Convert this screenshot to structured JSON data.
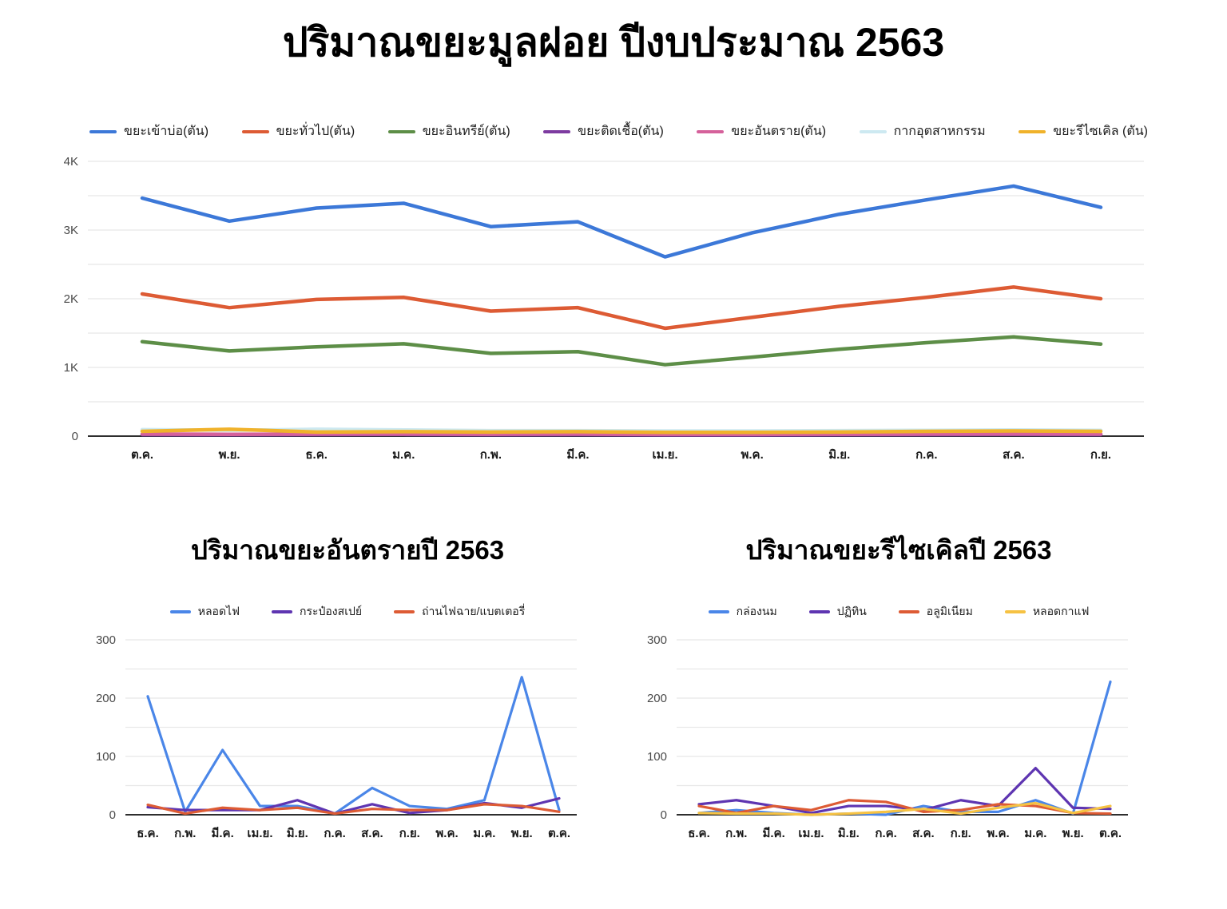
{
  "page_title": "ปริมาณขยะมูลฝอย ปีงบประมาณ 2563",
  "chart_data": [
    {
      "type": "line",
      "title": "ปริมาณขยะมูลฝอย ปีงบประมาณ 2563",
      "legend_position": "top",
      "grid": true,
      "ylim": [
        0,
        4000
      ],
      "minor_step": 500,
      "yticks": [
        {
          "v": 0,
          "label": "0"
        },
        {
          "v": 1000,
          "label": "1K"
        },
        {
          "v": 2000,
          "label": "2K"
        },
        {
          "v": 3000,
          "label": "3K"
        },
        {
          "v": 4000,
          "label": "4K"
        }
      ],
      "categories": [
        "ต.ค.",
        "พ.ย.",
        "ธ.ค.",
        "ม.ค.",
        "ก.พ.",
        "มี.ค.",
        "เม.ย.",
        "พ.ค.",
        "มิ.ย.",
        "ก.ค.",
        "ส.ค.",
        "ก.ย."
      ],
      "series": [
        {
          "name": "ขยะเข้าบ่อ(ตัน)",
          "color": "#3c78d8",
          "values": [
            3465,
            3130,
            3320,
            3390,
            3050,
            3120,
            2610,
            2960,
            3230,
            3440,
            3640,
            3330
          ]
        },
        {
          "name": "ขยะทั่วไป(ตัน)",
          "color": "#dd5b34",
          "values": [
            2070,
            1870,
            1990,
            2020,
            1820,
            1870,
            1570,
            1730,
            1890,
            2020,
            2170,
            2000
          ]
        },
        {
          "name": "ขยะอินทรีย์(ตัน)",
          "color": "#5d8e47",
          "values": [
            1375,
            1240,
            1300,
            1345,
            1205,
            1230,
            1040,
            1150,
            1265,
            1360,
            1445,
            1340
          ]
        },
        {
          "name": "ขยะติดเชื้อ(ตัน)",
          "color": "#7d3ba0",
          "values": [
            22,
            20,
            22,
            24,
            20,
            22,
            18,
            18,
            20,
            22,
            25,
            22
          ]
        },
        {
          "name": "ขยะอันตราย(ตัน)",
          "color": "#d5619b",
          "values": [
            30,
            26,
            30,
            30,
            28,
            30,
            25,
            25,
            28,
            30,
            32,
            30
          ]
        },
        {
          "name": "กากอุตสาหกรรม",
          "color": "#cde9f1",
          "values": [
            95,
            85,
            100,
            90,
            80,
            80,
            75,
            75,
            80,
            85,
            90,
            85
          ]
        },
        {
          "name": "ขยะรีไซเคิล (ตัน)",
          "color": "#f0b22b",
          "values": [
            70,
            100,
            60,
            65,
            60,
            65,
            55,
            55,
            60,
            70,
            75,
            70
          ]
        }
      ]
    },
    {
      "type": "line",
      "title": "ปริมาณขยะอันตรายปี 2563",
      "legend_position": "top",
      "grid": true,
      "ylim": [
        0,
        300
      ],
      "minor_step": 50,
      "yticks": [
        {
          "v": 0,
          "label": "0"
        },
        {
          "v": 100,
          "label": "100"
        },
        {
          "v": 200,
          "label": "200"
        },
        {
          "v": 300,
          "label": "300"
        }
      ],
      "categories": [
        "ธ.ค.",
        "ก.พ.",
        "มี.ค.",
        "เม.ย.",
        "มิ.ย.",
        "ก.ค.",
        "ส.ค.",
        "ก.ย.",
        "พ.ค.",
        "ม.ค.",
        "พ.ย.",
        "ต.ค."
      ],
      "series": [
        {
          "name": "หลอดไฟ",
          "color": "#4a86e8",
          "values": [
            203,
            5,
            111,
            15,
            15,
            2,
            46,
            15,
            10,
            25,
            236,
            8
          ]
        },
        {
          "name": "กระป๋องสเปย์",
          "color": "#5e35b1",
          "values": [
            13,
            8,
            8,
            8,
            25,
            2,
            18,
            3,
            8,
            20,
            12,
            28
          ]
        },
        {
          "name": "ถ่านไฟฉาย/แบตเตอรี่",
          "color": "#dd5b34",
          "values": [
            17,
            2,
            12,
            8,
            12,
            2,
            10,
            8,
            8,
            18,
            15,
            5
          ]
        }
      ]
    },
    {
      "type": "line",
      "title": "ปริมาณขยะรีไซเคิลปี 2563",
      "legend_position": "top",
      "grid": true,
      "ylim": [
        0,
        300
      ],
      "minor_step": 50,
      "yticks": [
        {
          "v": 0,
          "label": "0"
        },
        {
          "v": 100,
          "label": "100"
        },
        {
          "v": 200,
          "label": "200"
        },
        {
          "v": 300,
          "label": "300"
        }
      ],
      "categories": [
        "ธ.ค.",
        "ก.พ.",
        "มี.ค.",
        "เม.ย.",
        "มิ.ย.",
        "ก.ค.",
        "ส.ค.",
        "ก.ย.",
        "พ.ค.",
        "ม.ค.",
        "พ.ย.",
        "ต.ค."
      ],
      "series": [
        {
          "name": "กล่องนม",
          "color": "#4a86e8",
          "values": [
            3,
            8,
            3,
            0,
            2,
            0,
            15,
            5,
            5,
            25,
            2,
            228
          ]
        },
        {
          "name": "ปฏิทิน",
          "color": "#5e35b1",
          "values": [
            18,
            25,
            15,
            3,
            15,
            15,
            8,
            25,
            15,
            80,
            12,
            10
          ]
        },
        {
          "name": "อลูมิเนียม",
          "color": "#dd5b34",
          "values": [
            15,
            3,
            15,
            8,
            25,
            22,
            5,
            8,
            18,
            15,
            3,
            2
          ]
        },
        {
          "name": "หลอดกาแฟ",
          "color": "#f6c243",
          "values": [
            3,
            2,
            2,
            0,
            2,
            5,
            10,
            2,
            12,
            20,
            3,
            15
          ]
        }
      ]
    }
  ]
}
